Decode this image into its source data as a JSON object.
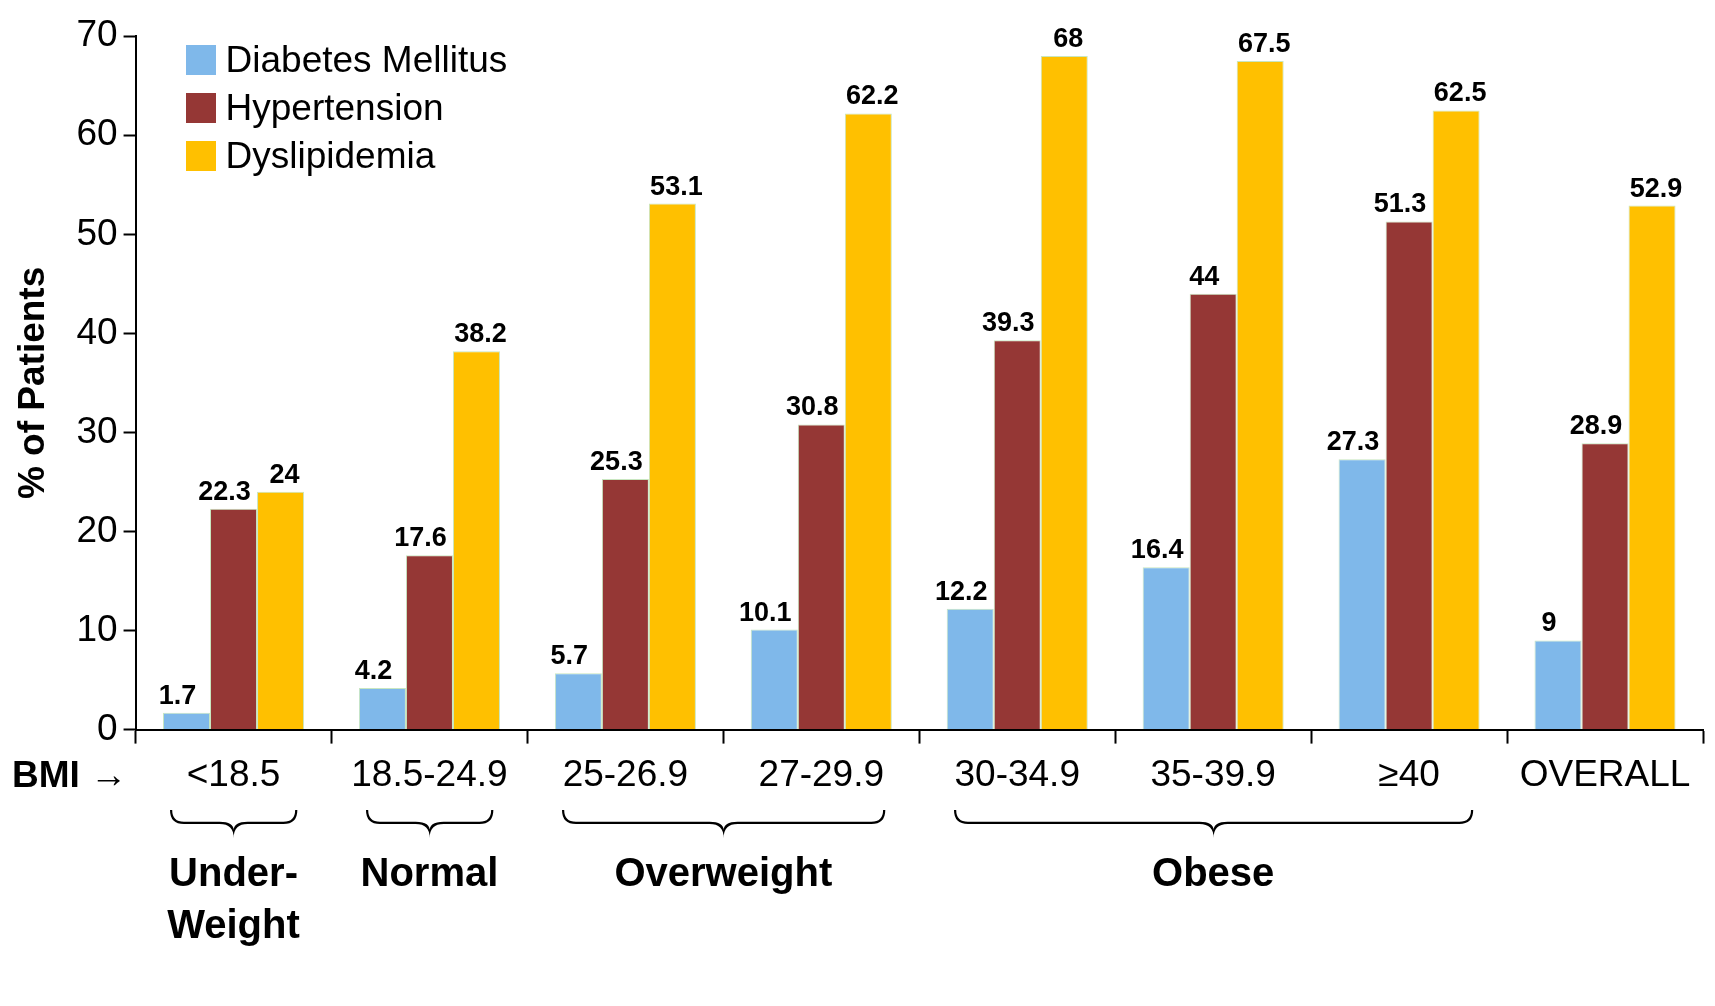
{
  "chart_data": {
    "type": "bar",
    "ylabel": "% of Patients",
    "xlabel": "BMI →",
    "categories": [
      "<18.5",
      "18.5-24.9",
      "25-26.9",
      "27-29.9",
      "30-34.9",
      "35-39.9",
      "≥40",
      "OVERALL"
    ],
    "series": [
      {
        "name": "Diabetes Mellitus",
        "color": "#7fb8ea",
        "values": [
          1.7,
          4.2,
          5.7,
          10.1,
          12.2,
          16.4,
          27.3,
          9
        ]
      },
      {
        "name": "Hypertension",
        "color": "#953735",
        "values": [
          22.3,
          17.6,
          25.3,
          30.8,
          39.3,
          44,
          51.3,
          28.9
        ]
      },
      {
        "name": "Dyslipidemia",
        "color": "#ffc000",
        "values": [
          24,
          38.2,
          53.1,
          62.2,
          68,
          67.5,
          62.5,
          52.9
        ]
      }
    ],
    "ylim": [
      0,
      70
    ],
    "yticks": [
      0,
      10,
      20,
      30,
      40,
      50,
      60,
      70
    ],
    "grid": false,
    "legend": "top left",
    "data_labels": true,
    "annotations": [
      "Under-\nWeight",
      "Normal",
      "Overweight",
      "Obese"
    ]
  }
}
